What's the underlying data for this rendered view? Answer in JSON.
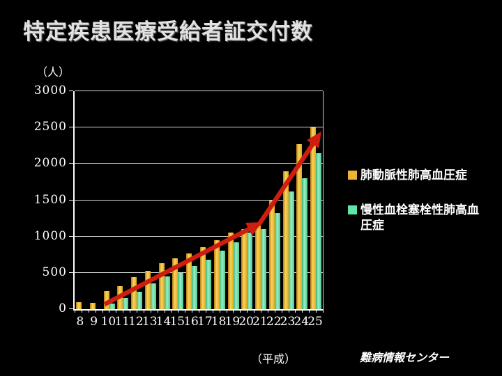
{
  "title": "特定疾患医療受給者証交付数",
  "y_axis_unit": "（人）",
  "x_axis_suffix": "（平成）",
  "credit": "難病情報センター",
  "colors": {
    "background": "#000000",
    "text": "#ffffff",
    "gridline": "#d9d9d9",
    "axis": "#ffffff"
  },
  "arrow": {
    "name": "red-trend-arrow",
    "color": "#cf1d10"
  },
  "legend": [
    {
      "key": "pah",
      "label": "肺動脈性肺高血圧症",
      "color": "#f0b434"
    },
    {
      "key": "cteph",
      "label": "慢性血栓塞栓性肺高血圧症",
      "color": "#5fe6a7"
    }
  ],
  "chart_data": {
    "type": "bar",
    "title": "特定疾患医療受給者証交付数",
    "xlabel": "（平成）",
    "ylabel": "（人）",
    "ylim": [
      0,
      3000
    ],
    "yticks": [
      0,
      500,
      1000,
      1500,
      2000,
      2500,
      3000
    ],
    "grid": true,
    "legend_position": "right",
    "categories": [
      "8",
      "9",
      "10",
      "11",
      "12",
      "13",
      "14",
      "15",
      "16",
      "17",
      "18",
      "19",
      "20",
      "21",
      "22",
      "23",
      "24",
      "25"
    ],
    "series": [
      {
        "key": "pah",
        "name": "肺動脈性肺高血圧症",
        "color": "#f0b434",
        "gradient": [
          "#ba7d12",
          "#f8d55a",
          "#e3a81f"
        ],
        "values": [
          100,
          90,
          250,
          320,
          440,
          530,
          630,
          700,
          770,
          850,
          950,
          1050,
          1100,
          1150,
          1500,
          1900,
          2270,
          2500
        ]
      },
      {
        "key": "cteph",
        "name": "慢性血栓塞栓性肺高血圧症",
        "color": "#5fe6a7",
        "gradient": [
          "#42b078",
          "#95f2c4",
          "#55c491"
        ],
        "values": [
          0,
          0,
          80,
          150,
          240,
          350,
          450,
          500,
          590,
          680,
          810,
          920,
          1050,
          1100,
          1320,
          1620,
          1800,
          2150
        ]
      }
    ],
    "annotations": [
      "red upward arrow segment from Heisei 9 baseline to about Heisei 21 at ~1200",
      "red upward arrow segment from about Heisei 21 to Heisei 25 at ~2400"
    ]
  }
}
